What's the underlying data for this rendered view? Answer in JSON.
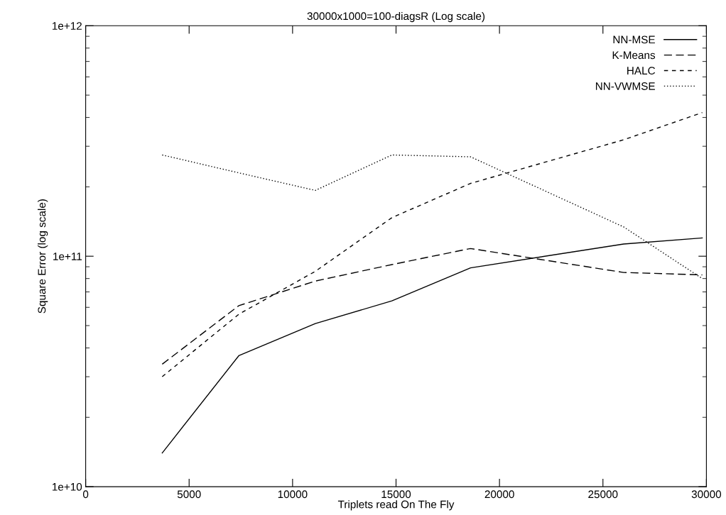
{
  "chart_data": {
    "type": "line",
    "title": "30000x1000=100-diagsR (Log scale)",
    "xlabel": "Triplets read On The Fly",
    "ylabel": "Square Error (log scale)",
    "x": [
      3700,
      7400,
      11100,
      14800,
      18600,
      26000,
      29800
    ],
    "series": [
      {
        "name": "NN-MSE",
        "color": "#000000",
        "line_style": "solid",
        "values": [
          14000000000.0,
          37000000000.0,
          51000000000.0,
          64000000000.0,
          89000000000.0,
          113000000000.0,
          120000000000.0
        ]
      },
      {
        "name": "K-Means",
        "color": "#000000",
        "line_style": "dashed",
        "values": [
          34000000000.0,
          61000000000.0,
          78000000000.0,
          92000000000.0,
          108000000000.0,
          85000000000.0,
          83000000000.0
        ]
      },
      {
        "name": "HALC",
        "color": "#000000",
        "line_style": "dashed",
        "values": [
          30000000000.0,
          56000000000.0,
          86000000000.0,
          147000000000.0,
          207000000000.0,
          320000000000.0,
          420000000000.0
        ]
      },
      {
        "name": "NN-VWMSE",
        "color": "#000000",
        "line_style": "dotted",
        "values": [
          275000000000.0,
          230000000000.0,
          193000000000.0,
          275000000000.0,
          270000000000.0,
          134000000000.0,
          80000000000.0
        ]
      }
    ],
    "log": "y",
    "xlim": [
      0,
      30000
    ],
    "xticks": [
      0,
      5000,
      10000,
      15000,
      20000,
      25000,
      30000
    ],
    "ylim": [
      10000000000.0,
      1000000000000.0
    ],
    "yticks": [
      {
        "value": 10000000000.0,
        "label": "1e+10"
      },
      {
        "value": 100000000000.0,
        "label": "1e+11"
      },
      {
        "value": 1000000000000.0,
        "label": "1e+12"
      }
    ],
    "grid": false,
    "legend": "top right",
    "marker": "none"
  }
}
